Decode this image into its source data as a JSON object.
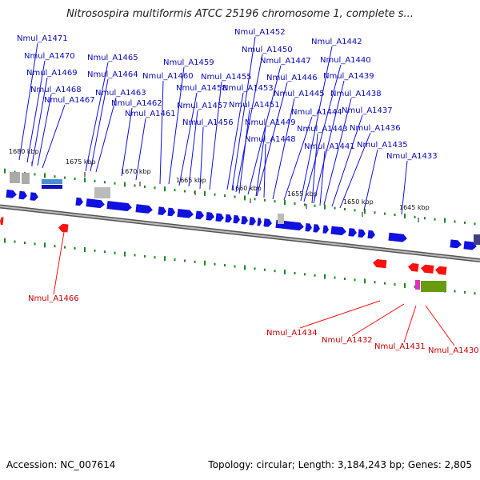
{
  "title": "Nitrosospira multiformis ATCC 25196 chromosome 1, complete s...",
  "accession_text": "Accession: NC_007614",
  "topology_text": "Topology: circular; Length: 3,184,243 bp; Genes: 2,805",
  "colors": {
    "forward": "#1010e0",
    "reverse": "#ff1010",
    "backbone": "#777777",
    "ticks": "#1a8a1a"
  },
  "kbp_labels": [
    "1680 kbp",
    "1675 kbp",
    "1670 kbp",
    "1665 kbp",
    "1660 kbp",
    "1655 kbp",
    "1650 kbp",
    "1645 kbp"
  ],
  "top_genes": [
    "Nmul_A1471",
    "Nmul_A1470",
    "Nmul_A1469",
    "Nmul_A1468",
    "Nmul_A1467",
    "Nmul_A1465",
    "Nmul_A1464",
    "Nmul_A1463",
    "Nmul_A1462",
    "Nmul_A1461",
    "Nmul_A1459",
    "Nmul_A1460",
    "Nmul_A1458",
    "Nmul_A1457",
    "Nmul_A1456",
    "Nmul_A1452",
    "Nmul_A1450",
    "Nmul_A1455",
    "Nmul_A1453",
    "Nmul_A1451",
    "Nmul_A1449",
    "Nmul_A1448",
    "Nmul_A1447",
    "Nmul_A1446",
    "Nmul_A1445",
    "Nmul_A1444",
    "Nmul_A1443",
    "Nmul_A1441",
    "Nmul_A1442",
    "Nmul_A1440",
    "Nmul_A1439",
    "Nmul_A1438",
    "Nmul_A1437",
    "Nmul_A1436",
    "Nmul_A1435",
    "Nmul_A1433"
  ],
  "bottom_genes": [
    "Nmul_A1466",
    "Nmul_A1434",
    "Nmul_A1432",
    "Nmul_A1431",
    "Nmul_A1430"
  ]
}
